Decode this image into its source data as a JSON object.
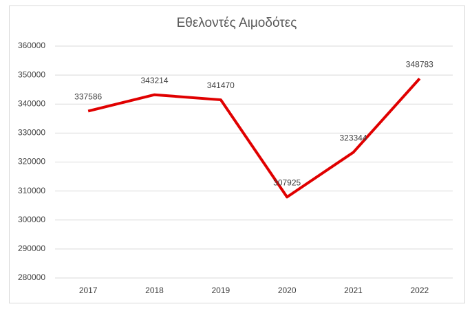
{
  "chart_data": {
    "type": "line",
    "title": "Εθελοντές Αιμοδότες",
    "categories": [
      "2017",
      "2018",
      "2019",
      "2020",
      "2021",
      "2022"
    ],
    "series": [
      {
        "color": "#e00000",
        "values": [
          337586,
          343214,
          341470,
          307925,
          323344,
          348783
        ]
      }
    ],
    "ylim": [
      280000,
      360000
    ],
    "yticks": [
      280000,
      290000,
      300000,
      310000,
      320000,
      330000,
      340000,
      350000,
      360000
    ],
    "grid": true
  }
}
